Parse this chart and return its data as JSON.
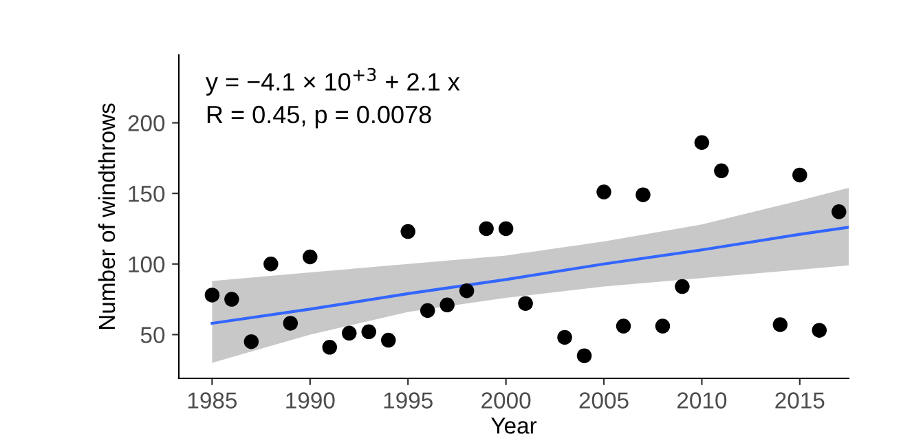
{
  "chart_data": {
    "type": "scatter",
    "ylabel": "Number of windthrows",
    "xlabel": "Year",
    "annotations": [
      "y = −4.1 × 10$^{+3}$ + 2.1 x",
      "R = 0.45, p = 0.0078"
    ],
    "xlim": [
      1983.3,
      2017.5
    ],
    "xticks": [
      1985,
      1990,
      1995,
      2000,
      2005,
      2010,
      2015
    ],
    "ylim": [
      19,
      248
    ],
    "yticks": [
      50,
      100,
      150,
      200
    ],
    "grid": false,
    "legend": false,
    "series": [
      {
        "marker": "circle",
        "color": "#000000",
        "x": [
          1985,
          1986,
          1987,
          1988,
          1989,
          1990,
          1991,
          1992,
          1993,
          1994,
          1995,
          1996,
          1997,
          1998,
          1999,
          2000,
          2001,
          2003,
          2004,
          2005,
          2006,
          2007,
          2008,
          2009,
          2010,
          2011,
          2014,
          2015,
          2016,
          2017
        ],
        "values": [
          78,
          75,
          45,
          100,
          58,
          105,
          41,
          51,
          52,
          46,
          123,
          67,
          71,
          81,
          125,
          125,
          72,
          48,
          35,
          151,
          56,
          149,
          56,
          84,
          186,
          166,
          57,
          163,
          53,
          137
        ]
      },
      {
        "type": "line",
        "marker": "none",
        "color": "#3366ff",
        "x": [
          1985,
          1990,
          1995,
          2000,
          2005,
          2010,
          2015,
          2017.5
        ],
        "values": [
          58,
          68,
          79,
          89,
          100,
          110,
          121,
          126
        ],
        "lower": [
          30,
          50,
          66,
          76,
          84,
          90,
          96,
          99
        ],
        "upper": [
          88,
          94,
          100,
          106,
          116,
          128,
          145,
          154
        ]
      }
    ]
  }
}
